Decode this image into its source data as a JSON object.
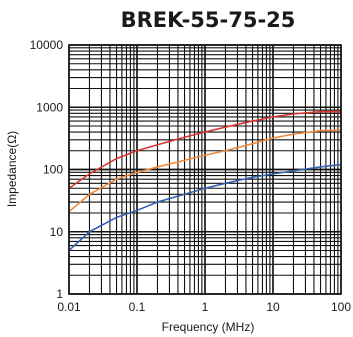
{
  "chart_data": {
    "type": "line",
    "title": "BREK-55-75-25",
    "xlabel": "Frequency (MHz)",
    "ylabel": "Impedance(Ω)",
    "x_scale": "log",
    "y_scale": "log",
    "xlim": [
      0.01,
      100
    ],
    "ylim": [
      1,
      10000
    ],
    "grid": true,
    "x_ticks": [
      "0.01",
      "0.1",
      "1",
      "10",
      "100"
    ],
    "y_ticks": [
      "1",
      "10",
      "100",
      "1000",
      "10000"
    ],
    "series": [
      {
        "color": "#d9372f",
        "x": [
          0.01,
          0.02,
          0.05,
          0.1,
          0.2,
          0.5,
          1,
          2,
          5,
          10,
          20,
          50,
          100
        ],
        "y": [
          50,
          85,
          150,
          200,
          250,
          330,
          400,
          480,
          600,
          700,
          780,
          850,
          850
        ]
      },
      {
        "color": "#f08a3a",
        "x": [
          0.01,
          0.02,
          0.05,
          0.1,
          0.2,
          0.5,
          1,
          2,
          5,
          10,
          20,
          50,
          100
        ],
        "y": [
          21,
          40,
          70,
          90,
          110,
          140,
          170,
          200,
          260,
          320,
          370,
          420,
          430
        ]
      },
      {
        "color": "#3563b0",
        "x": [
          0.01,
          0.02,
          0.05,
          0.1,
          0.2,
          0.5,
          1,
          2,
          5,
          10,
          20,
          50,
          100
        ],
        "y": [
          5,
          10,
          17,
          22,
          30,
          40,
          50,
          60,
          75,
          85,
          95,
          110,
          120
        ]
      }
    ]
  }
}
